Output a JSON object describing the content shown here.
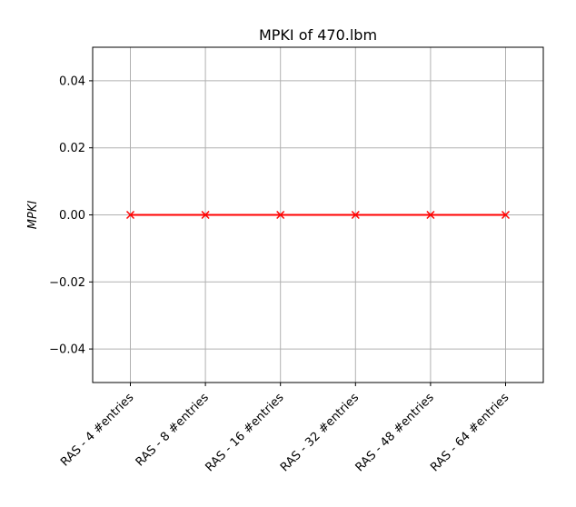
{
  "chart_data": {
    "type": "line",
    "title": "MPKI of 470.lbm",
    "xlabel": "",
    "ylabel": "MPKI",
    "categories": [
      "RAS - 4 #entries",
      "RAS - 8 #entries",
      "RAS - 16 #entries",
      "RAS - 32 #entries",
      "RAS - 48 #entries",
      "RAS - 64 #entries"
    ],
    "series": [
      {
        "values": [
          0.0,
          0.0,
          0.0,
          0.0,
          0.0,
          0.0
        ],
        "color": "#ff0000",
        "marker": "x"
      }
    ],
    "ylim": [
      -0.05,
      0.05
    ],
    "yticks": [
      -0.04,
      -0.02,
      0.0,
      0.02,
      0.04
    ],
    "ytick_labels": [
      "−0.04",
      "−0.02",
      "0.00",
      "0.02",
      "0.04"
    ],
    "grid": true,
    "legend": null
  }
}
